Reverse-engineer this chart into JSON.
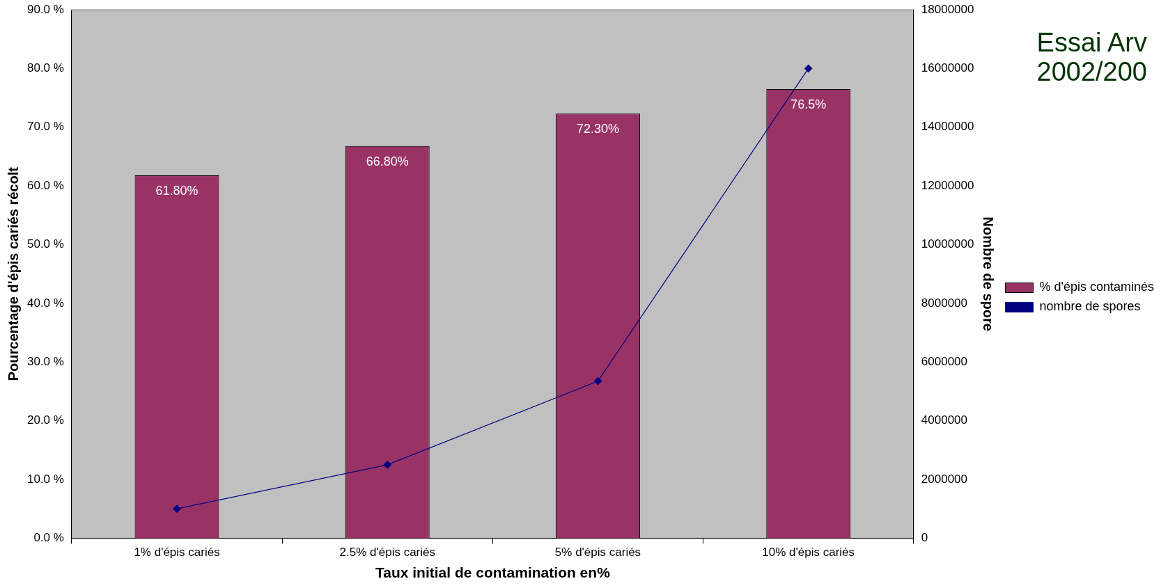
{
  "chart_data": {
    "type": "bar",
    "annotations": [
      "Essai Arv",
      "2002/200"
    ],
    "xlabel": "Taux initial de contamination en%",
    "ylabel": "Pourcentage d'épis cariés récolt",
    "y2label": "Nombre de spore",
    "categories": [
      "1% d'épis cariés",
      "2.5% d'épis cariés",
      "5% d'épis cariés",
      "10% d'épis cariés"
    ],
    "series": [
      {
        "name": "% d'épis contaminés",
        "color": "#993366",
        "values": [
          61.8,
          66.8,
          72.3,
          76.5
        ],
        "value_labels": [
          "61.80%",
          "66.80%",
          "72.30%",
          "76.5%"
        ]
      },
      {
        "name": "nombre de spores",
        "type": "line",
        "axis": "y2",
        "color": "#000080",
        "values": [
          1000000,
          2500000,
          5350000,
          16000000
        ]
      }
    ],
    "ylim": [
      0,
      90
    ],
    "yticks": [
      {
        "value": 0,
        "label": "0.0 %"
      },
      {
        "value": 10,
        "label": "10.0 %"
      },
      {
        "value": 20,
        "label": "20.0 %"
      },
      {
        "value": 30,
        "label": "30.0 %"
      },
      {
        "value": 40,
        "label": "40.0 %"
      },
      {
        "value": 50,
        "label": "50.0 %"
      },
      {
        "value": 60,
        "label": "60.0 %"
      },
      {
        "value": 70,
        "label": "70.0 %"
      },
      {
        "value": 80,
        "label": "80.0 %"
      },
      {
        "value": 90,
        "label": "90.0 %"
      }
    ],
    "y2lim": [
      0,
      18000000
    ],
    "y2ticks": [
      0,
      2000000,
      4000000,
      6000000,
      8000000,
      10000000,
      12000000,
      14000000,
      16000000,
      18000000
    ],
    "legend": "right",
    "grid": false,
    "marker": "diamond",
    "line_style": "solid"
  }
}
